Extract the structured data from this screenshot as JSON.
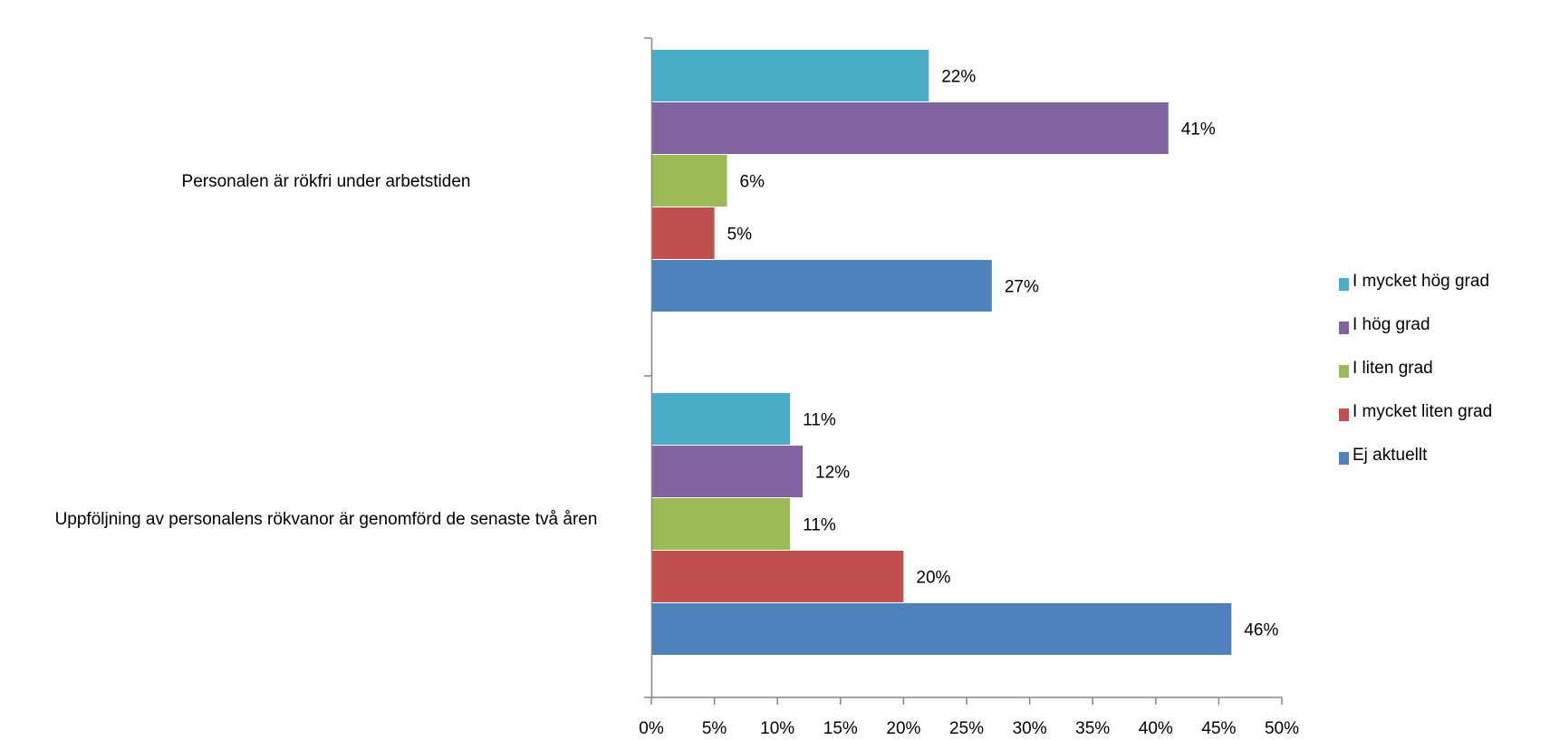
{
  "chart_data": {
    "type": "bar",
    "orientation": "horizontal",
    "categories": [
      "Personalen är rökfri under arbetstiden",
      "Uppföljning av personalens rökvanor är genomförd de senaste två åren"
    ],
    "series": [
      {
        "name": "I mycket hög grad",
        "color": "#4BACC6",
        "values": [
          22,
          11
        ]
      },
      {
        "name": "I hög grad",
        "color": "#8064A2",
        "values": [
          41,
          12
        ]
      },
      {
        "name": "I liten grad",
        "color": "#9BBB59",
        "values": [
          6,
          11
        ]
      },
      {
        "name": "I mycket liten grad",
        "color": "#C0504D",
        "values": [
          5,
          20
        ]
      },
      {
        "name": "Ej aktuellt",
        "color": "#4F81BD",
        "values": [
          27,
          46
        ]
      }
    ],
    "data_labels": [
      [
        "22%",
        "41%",
        "6%",
        "5%",
        "27%"
      ],
      [
        "11%",
        "12%",
        "11%",
        "20%",
        "46%"
      ]
    ],
    "xlim": [
      0,
      50
    ],
    "x_ticks": [
      "0%",
      "5%",
      "10%",
      "15%",
      "20%",
      "25%",
      "30%",
      "35%",
      "40%",
      "45%",
      "50%"
    ],
    "xlabel": "",
    "ylabel": "",
    "legend_position": "right",
    "grid": false
  }
}
